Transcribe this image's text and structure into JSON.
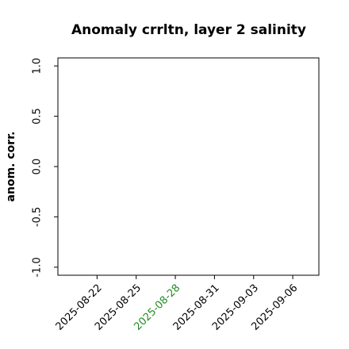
{
  "chart_data": {
    "type": "line",
    "title": "Anomaly crrltn, layer 2 salinity",
    "y_label": "anom. corr.",
    "x": [],
    "series": [],
    "xlim": [
      "2025-08-19",
      "2025-09-08"
    ],
    "xticks": [
      "2025-08-22",
      "2025-08-25",
      "2025-08-28",
      "2025-08-31",
      "2025-09-03",
      "2025-09-06"
    ],
    "xtick_colors": [
      "#000000",
      "#000000",
      "#228b22",
      "#000000",
      "#000000",
      "#000000"
    ],
    "ylim": [
      -1.08,
      1.08
    ],
    "yticks": [
      {
        "value": -1,
        "label": "-1.0"
      },
      {
        "value": -0.5,
        "label": "-0.5"
      },
      {
        "value": 0,
        "label": "0.0"
      },
      {
        "value": 0.5,
        "label": "0.5"
      },
      {
        "value": 1,
        "label": "1.0"
      }
    ]
  }
}
